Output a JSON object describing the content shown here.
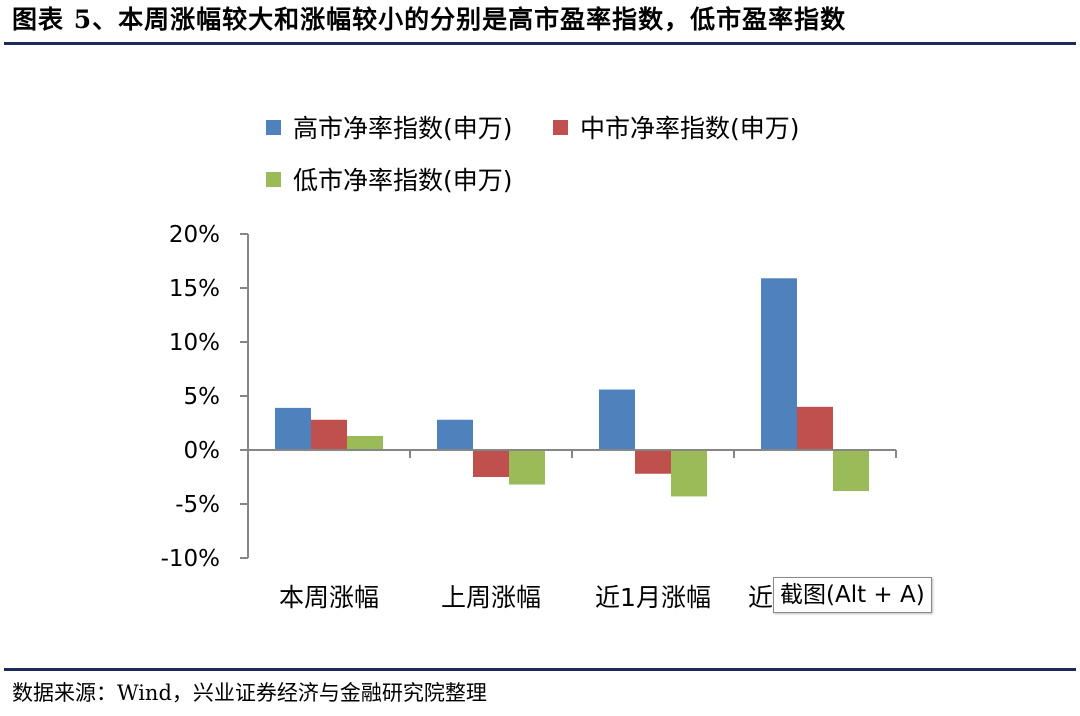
{
  "header": {
    "title": "图表 5、本周涨幅较大和涨幅较小的分别是高市盈率指数，低市盈率指数"
  },
  "footer": {
    "source": "数据来源：Wind，兴业证券经济与金融研究院整理"
  },
  "tooltip": {
    "text": "截图(Alt + A)"
  },
  "chart_data": {
    "type": "bar",
    "categories": [
      "本周涨幅",
      "上周涨幅",
      "近1月涨幅",
      "近"
    ],
    "series": [
      {
        "name": "高市净率指数(申万)",
        "color": "#4f81bd",
        "values": [
          3.9,
          2.8,
          5.6,
          15.9
        ]
      },
      {
        "name": "中市净率指数(申万)",
        "color": "#c0504d",
        "values": [
          2.8,
          -2.5,
          -2.2,
          4.0
        ]
      },
      {
        "name": "低市净率指数(申万)",
        "color": "#9bbb59",
        "values": [
          1.3,
          -3.2,
          -4.3,
          -3.8
        ]
      }
    ],
    "ylim": [
      -10,
      20
    ],
    "yticks": [
      -10,
      -5,
      0,
      5,
      10,
      15,
      20
    ],
    "ytick_labels": [
      "-10%",
      "-5%",
      "0%",
      "5%",
      "10%",
      "15%",
      "20%"
    ],
    "xlabel": "",
    "ylabel": "",
    "legend_position": "top",
    "grid": false
  }
}
